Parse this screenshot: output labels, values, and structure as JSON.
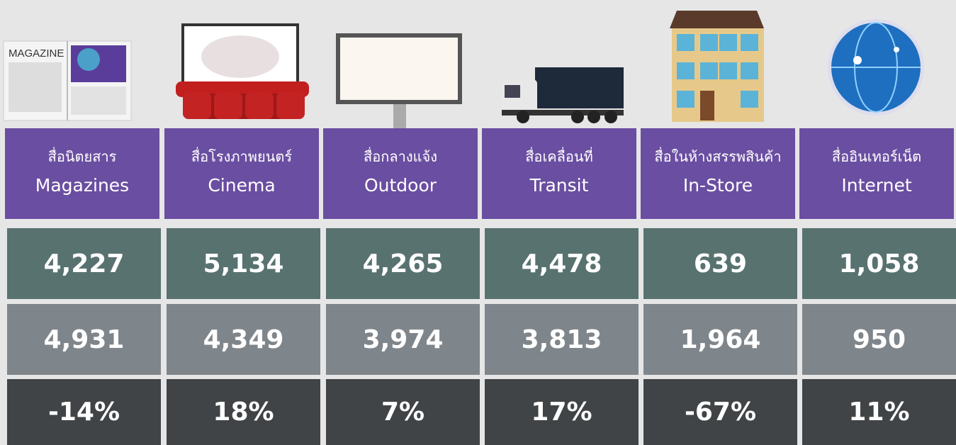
{
  "icons": {
    "magazine_text": "MAGAZINE"
  },
  "columns": [
    {
      "thai": "สื่อนิตยสาร",
      "english": "Magazines"
    },
    {
      "thai": "สื่อโรงภาพยนตร์",
      "english": "Cinema"
    },
    {
      "thai": "สื่อกลางแจ้ง",
      "english": "Outdoor"
    },
    {
      "thai": "สื่อเคลื่อนที่",
      "english": "Transit"
    },
    {
      "thai": "สื่อในห้างสรรพสินค้า",
      "english": "In-Store"
    },
    {
      "thai": "สื่ออินเทอร์เน็ต",
      "english": "Internet"
    }
  ],
  "rows": [
    [
      "4,227",
      "5,134",
      "4,265",
      "4,478",
      "639",
      "1,058"
    ],
    [
      "4,931",
      "4,349",
      "3,974",
      "3,813",
      "1,964",
      "950"
    ],
    [
      "-14%",
      "18%",
      "7%",
      "17%",
      "-67%",
      "11%"
    ]
  ]
}
